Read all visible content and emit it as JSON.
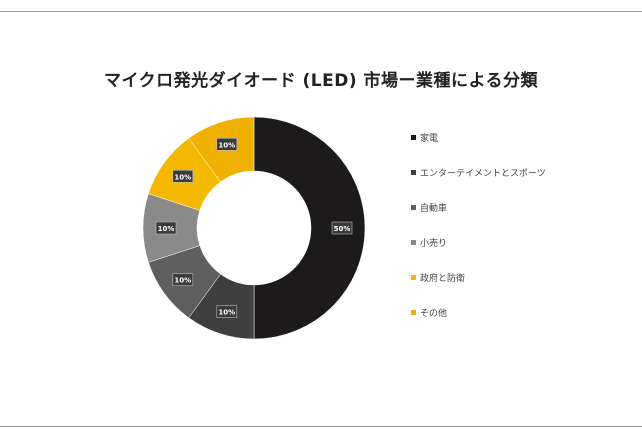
{
  "chart_data": {
    "type": "donut",
    "title": "マイクロ発光ダイオード (LED) 市場ー業種による分類",
    "legend_position": "right",
    "categories": [
      "家電",
      "エンターテイメントとスポーツ",
      "自動車",
      "小売り",
      "政府と防衛",
      "その他"
    ],
    "values": [
      50,
      10,
      10,
      10,
      10,
      10
    ],
    "labels": [
      "50%",
      "10%",
      "10%",
      "10%",
      "10%",
      "10%"
    ],
    "colors": [
      "#1c1a1a",
      "#3f3f3f",
      "#5e5e5e",
      "#8a8a8a",
      "#f5b800",
      "#f0b000"
    ]
  }
}
